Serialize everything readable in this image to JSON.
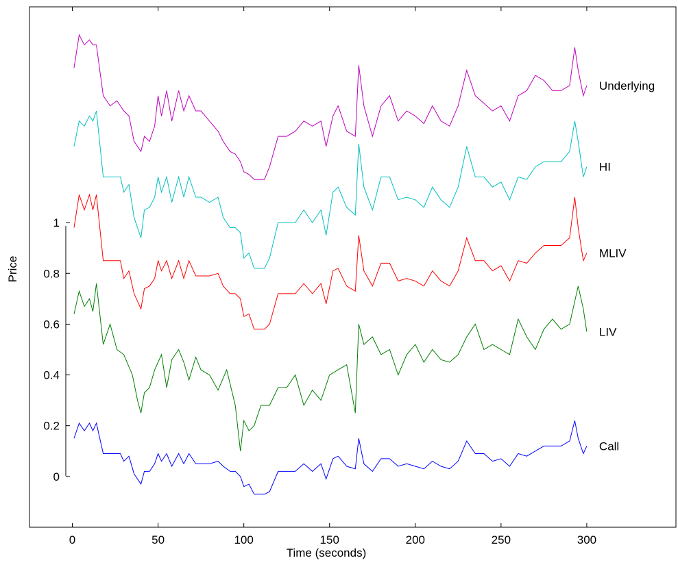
{
  "chart_data": {
    "type": "line",
    "xlabel": "Time (seconds)",
    "ylabel": "Price",
    "xlim": [
      -25,
      352
    ],
    "ylim": [
      -0.2,
      1.85
    ],
    "x_ticks": [
      0,
      50,
      100,
      150,
      200,
      250,
      300
    ],
    "x_tick_labels": [
      "0",
      "50",
      "100",
      "150",
      "200",
      "250",
      "300"
    ],
    "y_ticks": [
      0,
      0.2,
      0.4,
      0.6,
      0.8,
      1
    ],
    "y_tick_labels": [
      "0",
      "0.2",
      "0.4",
      "0.6",
      "0.8",
      "1"
    ],
    "grid": false,
    "legend": "none",
    "note_offsets": "Series are vertically stacked; only the y-axis from 0 to 1 is labeled.",
    "series": [
      {
        "name": "Call",
        "color": "#0000ff",
        "x": [
          1,
          4,
          7,
          10,
          12,
          14,
          18,
          25,
          28,
          30,
          33,
          36,
          40,
          42,
          45,
          48,
          50,
          52,
          55,
          58,
          62,
          65,
          68,
          72,
          75,
          80,
          85,
          88,
          92,
          95,
          98,
          100,
          103,
          106,
          112,
          115,
          120,
          125,
          130,
          135,
          140,
          145,
          148,
          152,
          155,
          160,
          165,
          167,
          170,
          175,
          180,
          185,
          190,
          195,
          200,
          205,
          210,
          215,
          220,
          225,
          230,
          235,
          240,
          245,
          250,
          255,
          260,
          265,
          270,
          275,
          280,
          285,
          290,
          293,
          295,
          298,
          300
        ],
        "values": [
          0.15,
          0.21,
          0.18,
          0.21,
          0.18,
          0.21,
          0.09,
          0.09,
          0.09,
          0.06,
          0.08,
          0.01,
          -0.03,
          0.02,
          0.02,
          0.05,
          0.09,
          0.06,
          0.09,
          0.04,
          0.09,
          0.05,
          0.09,
          0.05,
          0.05,
          0.05,
          0.06,
          0.04,
          0.02,
          0.02,
          0.0,
          -0.04,
          -0.03,
          -0.07,
          -0.07,
          -0.06,
          0.02,
          0.02,
          0.02,
          0.05,
          0.02,
          0.05,
          -0.01,
          0.07,
          0.08,
          0.04,
          0.03,
          0.15,
          0.05,
          0.02,
          0.07,
          0.07,
          0.04,
          0.05,
          0.04,
          0.03,
          0.06,
          0.04,
          0.03,
          0.06,
          0.14,
          0.09,
          0.09,
          0.06,
          0.07,
          0.04,
          0.09,
          0.08,
          0.1,
          0.12,
          0.12,
          0.12,
          0.14,
          0.22,
          0.15,
          0.09,
          0.12
        ]
      },
      {
        "name": "LIV",
        "color": "#007f00",
        "x": [
          1,
          4,
          7,
          10,
          12,
          14,
          18,
          22,
          26,
          30,
          35,
          38,
          40,
          42,
          45,
          48,
          52,
          55,
          58,
          62,
          65,
          68,
          72,
          75,
          80,
          85,
          90,
          95,
          98,
          100,
          103,
          106,
          110,
          115,
          120,
          125,
          130,
          135,
          140,
          145,
          150,
          155,
          160,
          165,
          167,
          170,
          175,
          180,
          185,
          190,
          195,
          200,
          205,
          210,
          215,
          220,
          225,
          230,
          235,
          240,
          245,
          250,
          255,
          260,
          265,
          270,
          275,
          280,
          285,
          290,
          295,
          298,
          300
        ],
        "values": [
          0.64,
          0.73,
          0.67,
          0.7,
          0.65,
          0.76,
          0.52,
          0.6,
          0.5,
          0.48,
          0.4,
          0.3,
          0.25,
          0.33,
          0.35,
          0.42,
          0.48,
          0.35,
          0.46,
          0.5,
          0.45,
          0.38,
          0.47,
          0.42,
          0.4,
          0.34,
          0.42,
          0.28,
          0.1,
          0.22,
          0.18,
          0.2,
          0.28,
          0.28,
          0.35,
          0.35,
          0.4,
          0.28,
          0.34,
          0.3,
          0.4,
          0.42,
          0.44,
          0.25,
          0.6,
          0.52,
          0.55,
          0.48,
          0.5,
          0.4,
          0.48,
          0.52,
          0.45,
          0.5,
          0.46,
          0.45,
          0.48,
          0.55,
          0.6,
          0.5,
          0.52,
          0.5,
          0.48,
          0.62,
          0.55,
          0.5,
          0.58,
          0.62,
          0.58,
          0.6,
          0.75,
          0.66,
          0.57
        ]
      },
      {
        "name": "MLIV",
        "color": "#ff0000",
        "x": [
          1,
          4,
          7,
          10,
          12,
          14,
          18,
          25,
          28,
          30,
          33,
          36,
          40,
          42,
          45,
          48,
          50,
          52,
          55,
          58,
          62,
          65,
          68,
          72,
          75,
          80,
          85,
          88,
          92,
          95,
          98,
          100,
          103,
          106,
          112,
          115,
          120,
          125,
          130,
          135,
          140,
          145,
          148,
          152,
          155,
          160,
          165,
          167,
          170,
          175,
          180,
          185,
          190,
          195,
          200,
          205,
          210,
          215,
          220,
          225,
          230,
          235,
          240,
          245,
          250,
          255,
          260,
          265,
          270,
          275,
          280,
          285,
          290,
          293,
          295,
          298,
          300
        ],
        "values": [
          0.98,
          1.11,
          1.05,
          1.11,
          1.05,
          1.11,
          0.85,
          0.85,
          0.85,
          0.78,
          0.81,
          0.72,
          0.66,
          0.74,
          0.75,
          0.78,
          0.85,
          0.81,
          0.85,
          0.78,
          0.85,
          0.78,
          0.85,
          0.79,
          0.79,
          0.79,
          0.8,
          0.75,
          0.72,
          0.72,
          0.7,
          0.63,
          0.64,
          0.58,
          0.58,
          0.6,
          0.72,
          0.72,
          0.72,
          0.76,
          0.72,
          0.76,
          0.68,
          0.81,
          0.82,
          0.75,
          0.73,
          0.95,
          0.81,
          0.75,
          0.84,
          0.84,
          0.77,
          0.78,
          0.77,
          0.75,
          0.81,
          0.77,
          0.75,
          0.81,
          0.94,
          0.85,
          0.85,
          0.81,
          0.83,
          0.77,
          0.85,
          0.84,
          0.88,
          0.91,
          0.91,
          0.91,
          0.94,
          1.1,
          0.98,
          0.85,
          0.88
        ]
      },
      {
        "name": "HI",
        "color": "#00bfbf",
        "x": [
          1,
          4,
          7,
          10,
          12,
          14,
          18,
          25,
          28,
          30,
          33,
          36,
          40,
          42,
          45,
          48,
          50,
          52,
          55,
          58,
          62,
          65,
          68,
          72,
          75,
          80,
          85,
          88,
          92,
          95,
          98,
          100,
          103,
          106,
          112,
          115,
          120,
          125,
          130,
          135,
          140,
          145,
          148,
          152,
          155,
          160,
          165,
          167,
          170,
          175,
          180,
          185,
          190,
          195,
          200,
          205,
          210,
          215,
          220,
          225,
          230,
          235,
          240,
          245,
          250,
          255,
          260,
          265,
          270,
          275,
          280,
          285,
          290,
          293,
          295,
          298,
          300
        ],
        "values": [
          1.3,
          1.4,
          1.38,
          1.42,
          1.4,
          1.44,
          1.18,
          1.18,
          1.18,
          1.12,
          1.15,
          1.02,
          0.94,
          1.05,
          1.06,
          1.1,
          1.18,
          1.12,
          1.18,
          1.08,
          1.18,
          1.1,
          1.18,
          1.1,
          1.1,
          1.08,
          1.1,
          1.02,
          0.98,
          0.98,
          0.96,
          0.86,
          0.88,
          0.82,
          0.82,
          0.86,
          1.0,
          1.0,
          1.0,
          1.05,
          1.0,
          1.05,
          0.95,
          1.12,
          1.14,
          1.06,
          1.03,
          1.31,
          1.14,
          1.05,
          1.18,
          1.18,
          1.09,
          1.1,
          1.09,
          1.06,
          1.14,
          1.09,
          1.06,
          1.14,
          1.3,
          1.18,
          1.18,
          1.14,
          1.16,
          1.09,
          1.18,
          1.17,
          1.22,
          1.24,
          1.24,
          1.24,
          1.28,
          1.4,
          1.32,
          1.18,
          1.22
        ]
      },
      {
        "name": "Underlying",
        "color": "#bf00bf",
        "x": [
          1,
          4,
          7,
          10,
          12,
          14,
          18,
          22,
          26,
          30,
          33,
          36,
          40,
          42,
          45,
          48,
          50,
          52,
          55,
          58,
          62,
          65,
          68,
          72,
          75,
          80,
          85,
          88,
          92,
          95,
          98,
          100,
          103,
          106,
          112,
          115,
          120,
          125,
          130,
          135,
          140,
          145,
          148,
          152,
          155,
          160,
          165,
          167,
          170,
          175,
          180,
          185,
          190,
          195,
          200,
          205,
          210,
          215,
          220,
          225,
          230,
          235,
          240,
          245,
          250,
          255,
          260,
          265,
          270,
          275,
          280,
          285,
          290,
          293,
          295,
          298,
          300
        ],
        "values": [
          1.61,
          1.74,
          1.7,
          1.72,
          1.7,
          1.7,
          1.5,
          1.46,
          1.48,
          1.44,
          1.42,
          1.32,
          1.28,
          1.34,
          1.32,
          1.38,
          1.5,
          1.42,
          1.52,
          1.4,
          1.52,
          1.44,
          1.5,
          1.44,
          1.44,
          1.4,
          1.36,
          1.32,
          1.28,
          1.27,
          1.24,
          1.2,
          1.19,
          1.17,
          1.17,
          1.22,
          1.34,
          1.34,
          1.36,
          1.4,
          1.38,
          1.4,
          1.3,
          1.42,
          1.46,
          1.36,
          1.34,
          1.62,
          1.46,
          1.34,
          1.46,
          1.5,
          1.4,
          1.44,
          1.42,
          1.39,
          1.46,
          1.4,
          1.38,
          1.46,
          1.6,
          1.5,
          1.47,
          1.44,
          1.46,
          1.4,
          1.5,
          1.52,
          1.58,
          1.56,
          1.52,
          1.52,
          1.54,
          1.69,
          1.6,
          1.5,
          1.54
        ]
      }
    ],
    "series_labels": [
      "Underlying",
      "HI",
      "MLIV",
      "LIV",
      "Call"
    ]
  }
}
